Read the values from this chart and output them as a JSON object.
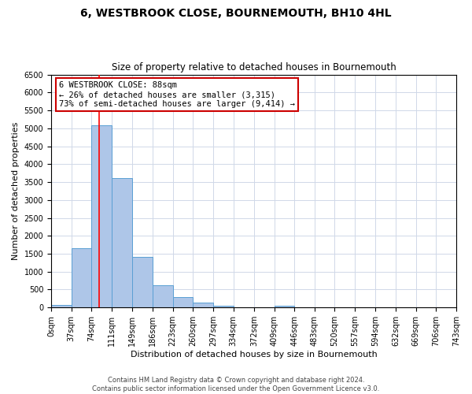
{
  "title": "6, WESTBROOK CLOSE, BOURNEMOUTH, BH10 4HL",
  "subtitle": "Size of property relative to detached houses in Bournemouth",
  "xlabel": "Distribution of detached houses by size in Bournemouth",
  "ylabel": "Number of detached properties",
  "footer_line1": "Contains HM Land Registry data © Crown copyright and database right 2024.",
  "footer_line2": "Contains public sector information licensed under the Open Government Licence v3.0.",
  "bin_edges": [
    0,
    37,
    74,
    111,
    149,
    186,
    223,
    260,
    297,
    334,
    372,
    409,
    446,
    483,
    520,
    557,
    594,
    632,
    669,
    706,
    743
  ],
  "bar_heights": [
    65,
    1650,
    5080,
    3600,
    1420,
    610,
    300,
    145,
    55,
    0,
    0,
    50,
    0,
    0,
    0,
    0,
    0,
    0,
    0,
    0
  ],
  "bar_color": "#aec6e8",
  "bar_edge_color": "#5a9fd4",
  "property_line_x": 88,
  "ylim": [
    0,
    6500
  ],
  "yticks": [
    0,
    500,
    1000,
    1500,
    2000,
    2500,
    3000,
    3500,
    4000,
    4500,
    5000,
    5500,
    6000,
    6500
  ],
  "annotation_line1": "6 WESTBROOK CLOSE: 88sqm",
  "annotation_line2": "← 26% of detached houses are smaller (3,315)",
  "annotation_line3": "73% of semi-detached houses are larger (9,414) →",
  "annotation_box_color": "#ffffff",
  "annotation_box_edge_color": "#cc0000",
  "grid_color": "#d0d8e8",
  "background_color": "#ffffff",
  "title_fontsize": 10,
  "subtitle_fontsize": 8.5,
  "ylabel_fontsize": 8,
  "xlabel_fontsize": 8,
  "tick_fontsize": 7,
  "footer_fontsize": 6
}
